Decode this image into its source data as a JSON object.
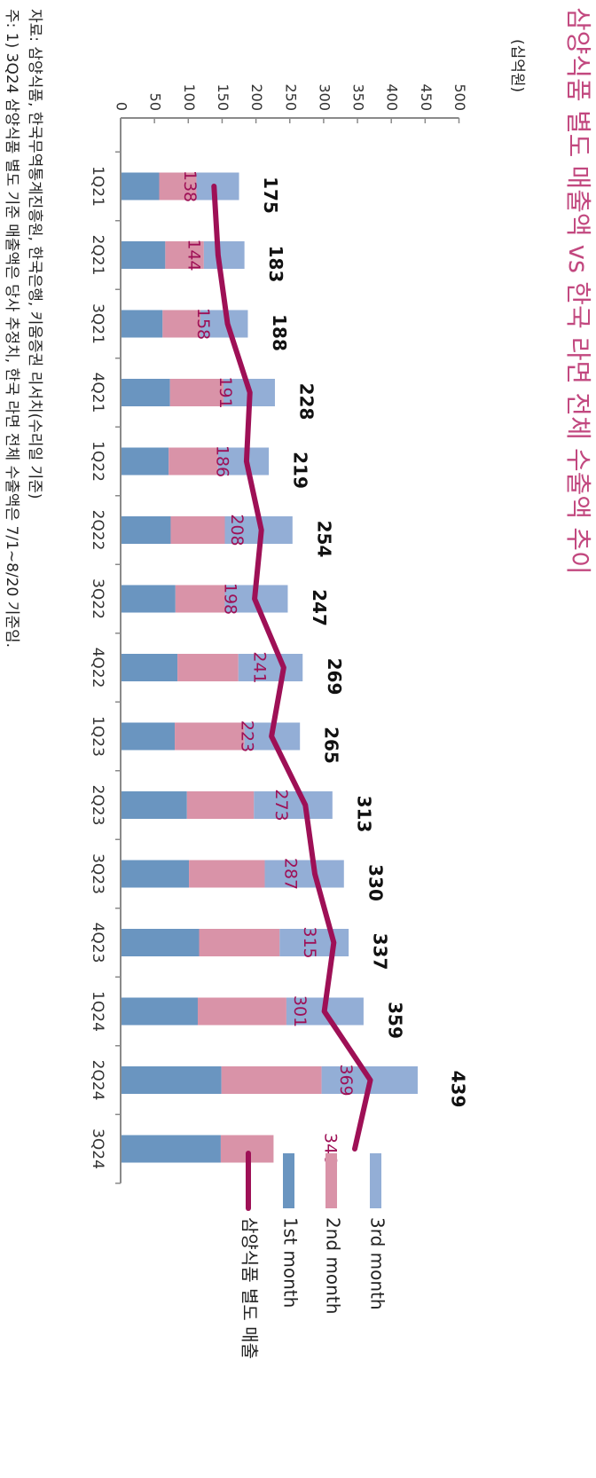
{
  "chart_data": {
    "type": "bar",
    "stacked": true,
    "orientation": "horizontal",
    "title": "삼양식품 별도 매출액 vs 한국 라면 전체 수출액 추이",
    "unit": "(십억원)",
    "categories": [
      "1Q21",
      "2Q21",
      "3Q21",
      "4Q21",
      "1Q22",
      "2Q22",
      "3Q22",
      "4Q22",
      "1Q23",
      "2Q23",
      "3Q23",
      "4Q23",
      "1Q24",
      "2Q24",
      "3Q24"
    ],
    "xlim": [
      0,
      500
    ],
    "ticks": [
      0,
      50,
      100,
      150,
      200,
      250,
      300,
      350,
      400,
      450,
      500
    ],
    "series": [
      {
        "name": "1st month",
        "color": "#6a95c0",
        "values": [
          57,
          66,
          62,
          73,
          71,
          74,
          81,
          84,
          80,
          98,
          101,
          116,
          114,
          149,
          148
        ]
      },
      {
        "name": "2nd month",
        "color": "#d993a8",
        "values": [
          55,
          57,
          56,
          79,
          73,
          80,
          73,
          90,
          103,
          99,
          112,
          119,
          131,
          148,
          78
        ]
      },
      {
        "name": "3rd month",
        "color": "#93aed6",
        "values": [
          63,
          60,
          70,
          76,
          75,
          100,
          93,
          95,
          82,
          116,
          117,
          102,
          114,
          142,
          null
        ]
      }
    ],
    "totals": [
      175,
      183,
      188,
      228,
      219,
      254,
      247,
      269,
      265,
      313,
      330,
      337,
      359,
      439,
      null
    ],
    "line_series": {
      "name": "삼양식품 별도 매출",
      "color": "#9e1056",
      "values": [
        138,
        144,
        158,
        191,
        186,
        208,
        198,
        241,
        223,
        273,
        287,
        315,
        301,
        369,
        346
      ]
    },
    "legend_position": "bottom",
    "grid": false
  },
  "notes": {
    "source": "자료: 삼양식품, 한국무역통계진흥원, 한국은행, 키움증권 리서치(수리일 기준)",
    "footnote": "주: 1) 3Q24 삼양식품 별도 기준 매출액은 당사 추정치, 한국 라면 전체 수출액은 7/1~8/20 기준임."
  }
}
